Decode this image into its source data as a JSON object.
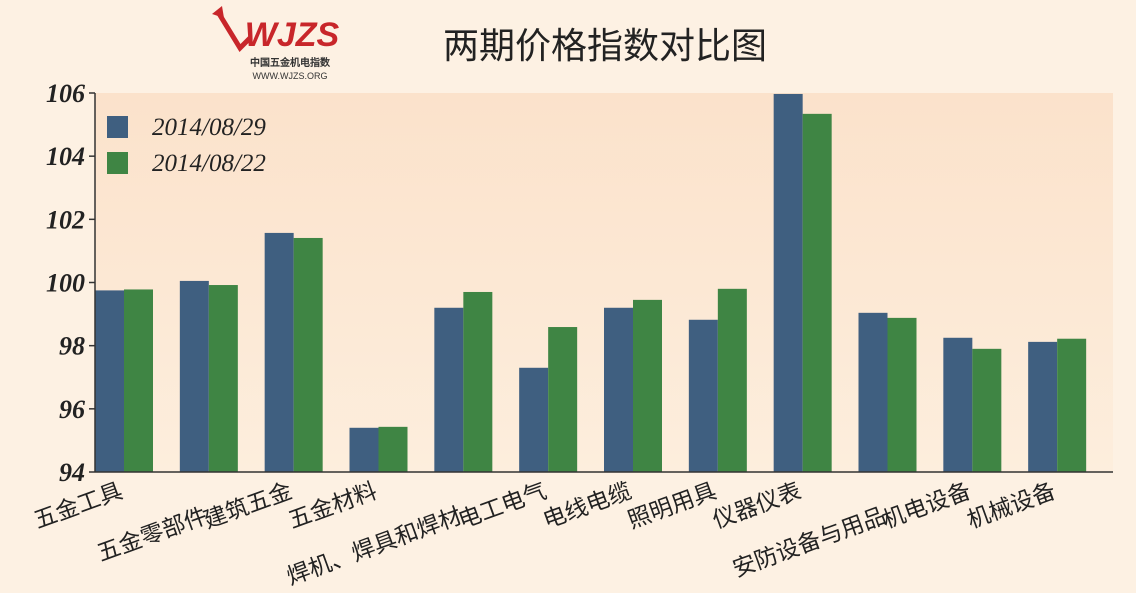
{
  "logo": {
    "text": "WJZS",
    "subtitle": "中国五金机电指数",
    "url": "WWW.WJZS.ORG"
  },
  "chart_data": {
    "type": "bar",
    "title": "两期价格指数对比图",
    "categories": [
      "五金工具",
      "五金零部件",
      "建筑五金",
      "五金材料",
      "焊机、焊具和焊材",
      "电工电气",
      "电线电缆",
      "照明用具",
      "仪器仪表",
      "安防设备与用品",
      "机电设备",
      "机械设备"
    ],
    "series": [
      {
        "name": "2014/08/29",
        "color": "#3f5f80",
        "values": [
          99.75,
          100.05,
          101.57,
          95.4,
          99.2,
          97.3,
          99.2,
          98.82,
          105.97,
          99.04,
          98.25,
          98.12
        ]
      },
      {
        "name": "2014/08/22",
        "color": "#3f8544",
        "values": [
          99.78,
          99.92,
          101.41,
          95.43,
          99.7,
          98.59,
          99.45,
          99.8,
          105.34,
          98.88,
          97.9,
          98.22
        ]
      }
    ],
    "ylim": [
      94,
      106
    ],
    "yticks": [
      94,
      96,
      98,
      100,
      102,
      104,
      106
    ],
    "grid": false,
    "legend": "top-left"
  }
}
